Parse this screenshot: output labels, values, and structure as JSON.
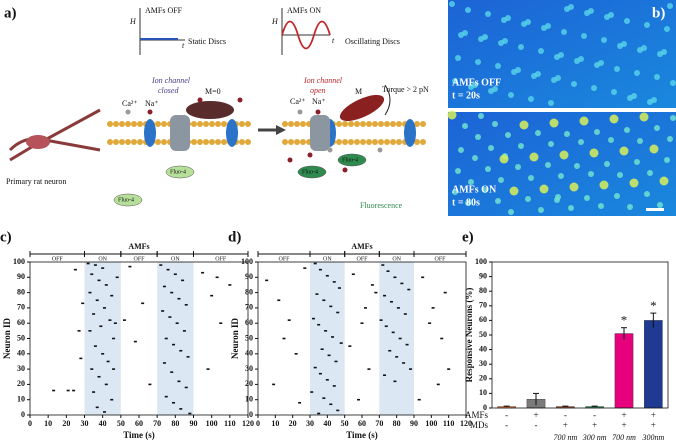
{
  "diagram": {
    "label": "a)",
    "off_title": "AMFs OFF",
    "on_title": "AMFs ON",
    "h_axis": "H",
    "t_axis": "t",
    "static": "Static Discs",
    "oscillating": "Oscillating Discs",
    "closed": [
      "Ion channel",
      "closed"
    ],
    "open": [
      "Ion channel",
      "open"
    ],
    "m0": "M=0",
    "m": "M",
    "torque": "Torque > 2 pN",
    "ca": "Ca²⁺",
    "na": "Na⁺",
    "neuron": "Primary rat neuron",
    "fluo": "Fluo-4",
    "fluorescence": "Fluorescence"
  },
  "images": {
    "label": "b)",
    "top": {
      "condition": "AMFs OFF",
      "time": "t = 20s"
    },
    "bottom": {
      "condition": "AMFs ON",
      "time": "t = 80s"
    }
  },
  "chart_data": [
    {
      "type": "scatter",
      "panel_label": "c)",
      "title": "AMFs",
      "xlabel": "Time (s)",
      "ylabel": "Neuron ID",
      "phases": [
        {
          "label": "OFF",
          "start": 0,
          "end": 30
        },
        {
          "label": "ON",
          "start": 30,
          "end": 50
        },
        {
          "label": "OFF",
          "start": 50,
          "end": 70
        },
        {
          "label": "ON",
          "start": 70,
          "end": 90
        },
        {
          "label": "OFF",
          "start": 90,
          "end": 120
        }
      ],
      "color": "#111111",
      "x": [
        13,
        21,
        24,
        28,
        27,
        25,
        29,
        32,
        36,
        40,
        34,
        38,
        42,
        33,
        45,
        37,
        41,
        35,
        44,
        39,
        33,
        46,
        36,
        40,
        43,
        34,
        38,
        42,
        35,
        45,
        37,
        41,
        48,
        47,
        46,
        55,
        62,
        58,
        66,
        52,
        72,
        76,
        80,
        84,
        74,
        78,
        82,
        86,
        73,
        77,
        81,
        85,
        75,
        79,
        83,
        87,
        74,
        78,
        82,
        86,
        75,
        79,
        83,
        88,
        95,
        100,
        105,
        110,
        98,
        103
      ],
      "y": [
        16,
        16,
        16,
        37,
        55,
        95,
        73,
        99,
        98,
        96,
        92,
        88,
        85,
        80,
        78,
        75,
        70,
        66,
        62,
        58,
        55,
        50,
        45,
        40,
        35,
        30,
        25,
        20,
        15,
        10,
        5,
        2,
        90,
        60,
        30,
        97,
        73,
        48,
        20,
        62,
        98,
        95,
        92,
        88,
        84,
        80,
        76,
        72,
        68,
        64,
        60,
        55,
        50,
        46,
        42,
        38,
        34,
        28,
        22,
        18,
        12,
        8,
        4,
        1,
        93,
        78,
        60,
        85,
        30,
        90
      ],
      "xlim": [
        0,
        120
      ],
      "ylim": [
        0,
        100
      ],
      "xticks": [
        0,
        10,
        20,
        30,
        40,
        50,
        60,
        70,
        80,
        90,
        100,
        110,
        120
      ],
      "yticks": [
        0,
        10,
        20,
        30,
        40,
        50,
        60,
        70,
        80,
        90,
        100
      ]
    },
    {
      "type": "scatter",
      "panel_label": "d)",
      "title": "AMFs",
      "xlabel": "Time (s)",
      "ylabel": "Neuron ID",
      "phases": [
        {
          "label": "OFF",
          "start": 0,
          "end": 30
        },
        {
          "label": "ON",
          "start": 30,
          "end": 50
        },
        {
          "label": "OFF",
          "start": 50,
          "end": 70
        },
        {
          "label": "ON",
          "start": 70,
          "end": 90
        },
        {
          "label": "OFF",
          "start": 90,
          "end": 120
        }
      ],
      "color": "#111111",
      "x": [
        5,
        12,
        18,
        22,
        27,
        9,
        15,
        24,
        33,
        36,
        40,
        44,
        47,
        34,
        38,
        42,
        46,
        32,
        35,
        39,
        43,
        48,
        37,
        41,
        45,
        33,
        36,
        40,
        44,
        31,
        38,
        42,
        46,
        35,
        55,
        60,
        64,
        68,
        53,
        58,
        62,
        66,
        72,
        75,
        79,
        83,
        87,
        73,
        77,
        81,
        85,
        71,
        74,
        78,
        82,
        86,
        76,
        80,
        84,
        88,
        73,
        79,
        95,
        101,
        106,
        110,
        93,
        108,
        99,
        104
      ],
      "y": [
        88,
        75,
        62,
        40,
        96,
        20,
        50,
        8,
        99,
        95,
        91,
        87,
        83,
        79,
        75,
        71,
        67,
        63,
        59,
        55,
        51,
        47,
        43,
        39,
        35,
        31,
        27,
        23,
        19,
        15,
        11,
        7,
        3,
        1,
        92,
        60,
        30,
        80,
        45,
        10,
        70,
        85,
        98,
        94,
        90,
        86,
        82,
        78,
        74,
        70,
        66,
        62,
        58,
        54,
        50,
        46,
        42,
        38,
        34,
        30,
        26,
        22,
        90,
        70,
        50,
        30,
        10,
        80,
        60,
        20
      ],
      "xlim": [
        0,
        120
      ],
      "ylim": [
        0,
        100
      ],
      "xticks": [
        0,
        10,
        20,
        30,
        40,
        50,
        60,
        70,
        80,
        90,
        100,
        110,
        120
      ],
      "yticks": [
        0,
        10,
        20,
        30,
        40,
        50,
        60,
        70,
        80,
        90,
        100
      ]
    },
    {
      "type": "bar",
      "panel_label": "e)",
      "ylabel": "Responsive Neurons (%)",
      "values": [
        1,
        6,
        1,
        1,
        51,
        60
      ],
      "errors": [
        0.3,
        4,
        0.3,
        0.3,
        4,
        5
      ],
      "colors": [
        "#e8743b",
        "#7a7a7a",
        "#a0522d",
        "#2e8b57",
        "#e6007e",
        "#1f3a93"
      ],
      "annotations": [
        null,
        null,
        null,
        null,
        "*",
        "*"
      ],
      "rows": [
        {
          "label": "AMFs",
          "values": [
            "-",
            "+",
            "-",
            "-",
            "+",
            "+"
          ]
        },
        {
          "label": "MDs",
          "values": [
            "-",
            "-",
            "+",
            "+",
            "+",
            "+"
          ]
        }
      ],
      "sizes": [
        null,
        null,
        "700 nm",
        "300 nm",
        "700 nm",
        "300nm"
      ],
      "ylim": [
        0,
        100
      ],
      "yticks": [
        0,
        10,
        20,
        30,
        40,
        50,
        60,
        70,
        80,
        90,
        100
      ]
    }
  ]
}
